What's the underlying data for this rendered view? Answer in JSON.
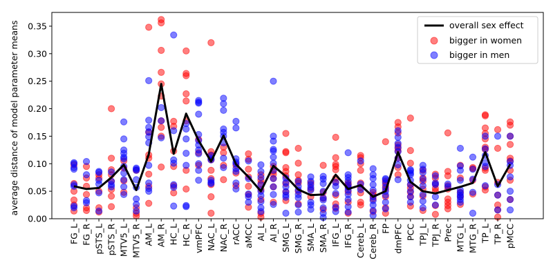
{
  "chart_data": {
    "type": "scatter",
    "ylabel": "average distance of model parameter means",
    "xlabel": "",
    "title": "",
    "ylim": [
      0,
      0.375
    ],
    "yticks": [
      0.0,
      0.05,
      0.1,
      0.15,
      0.2,
      0.25,
      0.3,
      0.35
    ],
    "ytick_labels": [
      "0.00",
      "0.05",
      "0.10",
      "0.15",
      "0.20",
      "0.25",
      "0.30",
      "0.35"
    ],
    "categories": [
      "FG_L",
      "FG_R",
      "pSTS_L",
      "pSTS_R",
      "MTV5_L",
      "MTV5_R",
      "AM_L",
      "AM_R",
      "HC_L",
      "HC_R",
      "vmPFC",
      "NAC_L",
      "NAC_R",
      "rACC",
      "aMCC",
      "AI_L",
      "AI_R",
      "SMG_L",
      "SMG_R",
      "SMA_L",
      "SMA_R",
      "IFG_L",
      "IFG_R",
      "Cereb_L",
      "Cereb_R",
      "FP",
      "dmPFC",
      "PCC",
      "TPJ_L",
      "TPJ_R",
      "Prec",
      "MTG_L",
      "MTG_R",
      "TP_L",
      "TP_R",
      "pMCC"
    ],
    "grid": false,
    "legend": {
      "placement": "upper-right",
      "entries": [
        "overall sex effect",
        "bigger in women",
        "bigger in men"
      ]
    },
    "colors": {
      "women": "#ff0000",
      "men": "#0000ff",
      "line": "#000000"
    },
    "series": [
      {
        "name": "overall sex effect",
        "kind": "line",
        "values": [
          0.059,
          0.054,
          0.056,
          0.075,
          0.098,
          0.052,
          0.117,
          0.245,
          0.118,
          0.191,
          0.142,
          0.104,
          0.151,
          0.099,
          0.076,
          0.05,
          0.096,
          0.077,
          0.053,
          0.043,
          0.044,
          0.08,
          0.054,
          0.061,
          0.04,
          0.05,
          0.121,
          0.067,
          0.05,
          0.046,
          0.052,
          0.058,
          0.065,
          0.121,
          0.059,
          0.099
        ]
      },
      {
        "name": "bigger in women",
        "kind": "scatter",
        "points": [
          [
            [
              0.014,
              0.025,
              0.034,
              0.05,
              0.064,
              0.098
            ],
            [
              0.015,
              0.02,
              0.044,
              0.059,
              0.074,
              0.095
            ],
            [
              0.012,
              0.02,
              0.05,
              0.074,
              0.08
            ],
            [
              0.022,
              0.041,
              0.053,
              0.068,
              0.08,
              0.089,
              0.11,
              0.2
            ],
            [
              0.048,
              0.069,
              0.092,
              0.105
            ],
            [
              0.005,
              0.01,
              0.02,
              0.088
            ],
            [
              0.028,
              0.059,
              0.081,
              0.11,
              0.116,
              0.157,
              0.348
            ],
            [
              0.094,
              0.15,
              0.166,
              0.178,
              0.223,
              0.245,
              0.266,
              0.306,
              0.356,
              0.362
            ],
            [
              0.047,
              0.06,
              0.095,
              0.123,
              0.168,
              0.177
            ],
            [
              0.054,
              0.088,
              0.178,
              0.214,
              0.227,
              0.26,
              0.264,
              0.305
            ],
            [
              0.097,
              0.12,
              0.144
            ],
            [
              0.01,
              0.04,
              0.062,
              0.073,
              0.088,
              0.107,
              0.116,
              0.122,
              0.32
            ],
            [
              0.071,
              0.097,
              0.12,
              0.13
            ],
            [
              0.06,
              0.083,
              0.097
            ],
            [
              0.021,
              0.044,
              0.059,
              0.076,
              0.09,
              0.108,
              0.118
            ],
            [
              0.003,
              0.01,
              0.035,
              0.053,
              0.064,
              0.07,
              0.08
            ],
            [
              0.03,
              0.058,
              0.073,
              0.081,
              0.086,
              0.095
            ],
            [
              0.033,
              0.049,
              0.064,
              0.078,
              0.086,
              0.093,
              0.12,
              0.122,
              0.155
            ],
            [
              0.027,
              0.05,
              0.065,
              0.07,
              0.08,
              0.101,
              0.128
            ],
            [
              0.04,
              0.054,
              0.065
            ],
            [
              0.017,
              0.037,
              0.048,
              0.097
            ],
            [
              0.019,
              0.027,
              0.043,
              0.066,
              0.074,
              0.089,
              0.095,
              0.099,
              0.111,
              0.148
            ],
            [
              0.01,
              0.03,
              0.049,
              0.058,
              0.062,
              0.065
            ],
            [
              0.025,
              0.03,
              0.047,
              0.057,
              0.065,
              0.088,
              0.1,
              0.111,
              0.115
            ],
            [
              0.013,
              0.036,
              0.043,
              0.048
            ],
            [
              0.01,
              0.02,
              0.04,
              0.054,
              0.061,
              0.068,
              0.14
            ],
            [
              0.08,
              0.093,
              0.11,
              0.123,
              0.128,
              0.134,
              0.156,
              0.167,
              0.175
            ],
            [
              0.023,
              0.04,
              0.048,
              0.056,
              0.062,
              0.101,
              0.124,
              0.183
            ],
            [
              0.015,
              0.041,
              0.054,
              0.068,
              0.074,
              0.088
            ],
            [
              0.008,
              0.024,
              0.05,
              0.055,
              0.063,
              0.074,
              0.081
            ],
            [
              0.018,
              0.024,
              0.03,
              0.036,
              0.054,
              0.06,
              0.078,
              0.086,
              0.156
            ],
            [
              0.026,
              0.04,
              0.048,
              0.074,
              0.097
            ],
            [
              0.045,
              0.07,
              0.091,
              0.093
            ],
            [
              0.052,
              0.058,
              0.088,
              0.092,
              0.126,
              0.13,
              0.145,
              0.155,
              0.165,
              0.187,
              0.189
            ],
            [
              0.003,
              0.016,
              0.025,
              0.043,
              0.066,
              0.128,
              0.162
            ],
            [
              0.035,
              0.07,
              0.088,
              0.105,
              0.11,
              0.135,
              0.15,
              0.17,
              0.176
            ]
          ]
        ]
      },
      {
        "name": "bigger in men",
        "kind": "scatter",
        "points": [
          [
            [
              0.02,
              0.023,
              0.059,
              0.062,
              0.09,
              0.093,
              0.1,
              0.102
            ],
            [
              0.029,
              0.033,
              0.08,
              0.104
            ],
            [
              0.014,
              0.047,
              0.063,
              0.07,
              0.084,
              0.086
            ],
            [
              0.058,
              0.062,
              0.068,
              0.085
            ],
            [
              0.044,
              0.058,
              0.071,
              0.083,
              0.095,
              0.109,
              0.112,
              0.119,
              0.125,
              0.145,
              0.176
            ],
            [
              0.014,
              0.026,
              0.036,
              0.057,
              0.071,
              0.088,
              0.09,
              0.092
            ],
            [
              0.05,
              0.055,
              0.065,
              0.097,
              0.138,
              0.149,
              0.158,
              0.166,
              0.179,
              0.251
            ],
            [
              0.147,
              0.178,
              0.202
            ],
            [
              0.023,
              0.057,
              0.062,
              0.101,
              0.107,
              0.16,
              0.334
            ],
            [
              0.022,
              0.024,
              0.097,
              0.119,
              0.145,
              0.163,
              0.173
            ],
            [
              0.07,
              0.088,
              0.1,
              0.118,
              0.125,
              0.134,
              0.142,
              0.153,
              0.19,
              0.21,
              0.212,
              0.215
            ],
            [
              0.064,
              0.066,
              0.07,
              0.107,
              0.11,
              0.115
            ],
            [
              0.093,
              0.11,
              0.138,
              0.15,
              0.157,
              0.163,
              0.197,
              0.209,
              0.219
            ],
            [
              0.054,
              0.065,
              0.086,
              0.091,
              0.1,
              0.103,
              0.109,
              0.165,
              0.177
            ],
            [
              0.03,
              0.04,
              0.045,
              0.073,
              0.105
            ],
            [
              0.013,
              0.02,
              0.031,
              0.042,
              0.05,
              0.062,
              0.075,
              0.086,
              0.098
            ],
            [
              0.026,
              0.044,
              0.058,
              0.073,
              0.088,
              0.101,
              0.112,
              0.123,
              0.126,
              0.141,
              0.15,
              0.25
            ],
            [
              0.01,
              0.039,
              0.043,
              0.049,
              0.058,
              0.066,
              0.074
            ],
            [
              0.012,
              0.025,
              0.038,
              0.044,
              0.052,
              0.059,
              0.068
            ],
            [
              0.017,
              0.025,
              0.03,
              0.052,
              0.057,
              0.062,
              0.068,
              0.076
            ],
            [
              0.002,
              0.01,
              0.02,
              0.034,
              0.038,
              0.05,
              0.064,
              0.072,
              0.077
            ],
            [
              0.013,
              0.021,
              0.046,
              0.059,
              0.066
            ],
            [
              0.012,
              0.022,
              0.035,
              0.044,
              0.052,
              0.057,
              0.062,
              0.069,
              0.075,
              0.08,
              0.12
            ],
            [
              0.053,
              0.063,
              0.105
            ],
            [
              0.006,
              0.015,
              0.025,
              0.033,
              0.04,
              0.052,
              0.062,
              0.073,
              0.08,
              0.091
            ],
            [
              0.018,
              0.03,
              0.043,
              0.05,
              0.057,
              0.065,
              0.071,
              0.073
            ],
            [
              0.071,
              0.098,
              0.11,
              0.122,
              0.13,
              0.137,
              0.148,
              0.16
            ],
            [
              0.03,
              0.04,
              0.05,
              0.062,
              0.07,
              0.08,
              0.083,
              0.087,
              0.089
            ],
            [
              0.02,
              0.032,
              0.044,
              0.06,
              0.072,
              0.084,
              0.09,
              0.097
            ],
            [
              0.025,
              0.04,
              0.062,
              0.065,
              0.078
            ],
            [
              0.058,
              0.063
            ],
            [
              0.03,
              0.035,
              0.04,
              0.043,
              0.047,
              0.052,
              0.07,
              0.088,
              0.096,
              0.128
            ],
            [
              0.01,
              0.048,
              0.072,
              0.09,
              0.112
            ],
            [
              0.06,
              0.095,
              0.102,
              0.115,
              0.127,
              0.15
            ],
            [
              0.016,
              0.043,
              0.062,
              0.15
            ],
            [
              0.016,
              0.035,
              0.05,
              0.076,
              0.097,
              0.104,
              0.15
            ]
          ]
        ]
      }
    ]
  }
}
